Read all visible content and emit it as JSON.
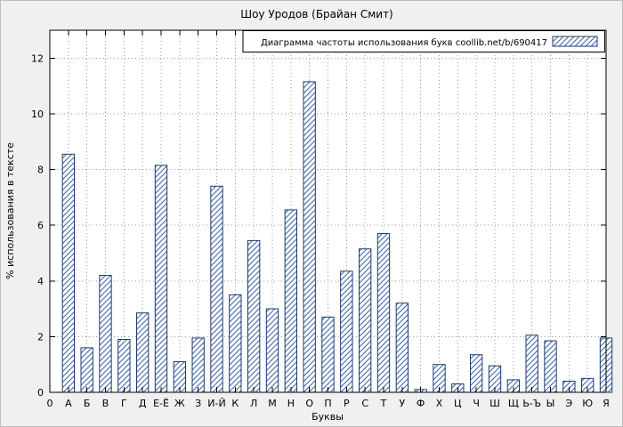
{
  "chart_data": {
    "type": "bar",
    "title": "Шоу Уродов (Брайан Смит)",
    "legend_label": "Диаграмма частоты использования букв coollib.net/b/690417",
    "legend_position": "top-right",
    "xlabel": "Буквы",
    "ylabel": "% использования в тексте",
    "origin_tick_label": "0",
    "categories": [
      "А",
      "Б",
      "В",
      "Г",
      "Д",
      "Е-Ё",
      "Ж",
      "З",
      "И-Й",
      "К",
      "Л",
      "М",
      "Н",
      "О",
      "П",
      "Р",
      "С",
      "Т",
      "У",
      "Ф",
      "Х",
      "Ц",
      "Ч",
      "Ш",
      "Щ",
      "Ь-Ъ",
      "Ы",
      "Э",
      "Ю",
      "Я"
    ],
    "values": [
      8.55,
      1.6,
      4.2,
      1.9,
      2.85,
      8.15,
      1.1,
      1.95,
      7.4,
      3.5,
      5.45,
      3.0,
      6.55,
      11.15,
      2.7,
      4.35,
      5.15,
      5.7,
      3.2,
      0.1,
      1.0,
      0.3,
      1.35,
      0.95,
      0.45,
      2.05,
      1.85,
      0.4,
      0.5,
      1.95
    ],
    "yticks": [
      0,
      2,
      4,
      6,
      8,
      10,
      12
    ],
    "ylim": [
      0,
      13
    ],
    "grid": true,
    "bar_style": "diagonal-hatch",
    "colors": {
      "bar_border": "#1b3a6b",
      "bar_hatch": "#3a62a8",
      "figure_background": "#f0f0f0",
      "plot_background": "#ffffff",
      "grid": "#9a9a9a",
      "text": "#000000"
    }
  }
}
